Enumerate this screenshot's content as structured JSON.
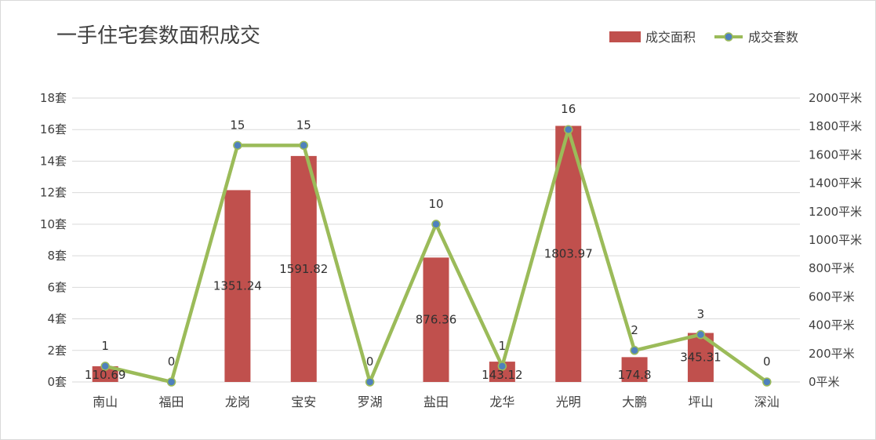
{
  "chart_data": {
    "type": "bar+line",
    "title": "一手住宅套数面积成交",
    "categories": [
      "南山",
      "福田",
      "龙岗",
      "宝安",
      "罗湖",
      "盐田",
      "龙华",
      "光明",
      "大鹏",
      "坪山",
      "深汕"
    ],
    "series": [
      {
        "name": "成交面积",
        "type": "bar",
        "axis": "right",
        "color": "#c0504d",
        "values": [
          110.69,
          0,
          1351.24,
          1591.82,
          0,
          876.36,
          143.12,
          1803.97,
          174.8,
          345.31,
          0
        ],
        "labels": [
          "110.69",
          "",
          "1351.24",
          "1591.82",
          "",
          "876.36",
          "143.12",
          "1803.97",
          "174.8",
          "345.31",
          ""
        ]
      },
      {
        "name": "成交套数",
        "type": "line",
        "axis": "left",
        "color": "#9bbb59",
        "marker_color": "#4f81bd",
        "values": [
          1,
          0,
          15,
          15,
          0,
          10,
          1,
          16,
          2,
          3,
          0
        ],
        "labels": [
          "1",
          "0",
          "15",
          "15",
          "0",
          "10",
          "1",
          "16",
          "2",
          "3",
          "0"
        ]
      }
    ],
    "left_axis": {
      "ylim": [
        0,
        18
      ],
      "ticks": [
        "0套",
        "2套",
        "4套",
        "6套",
        "8套",
        "10套",
        "12套",
        "14套",
        "16套",
        "18套"
      ]
    },
    "right_axis": {
      "ylim": [
        0,
        2000
      ],
      "ticks": [
        "0平米",
        "200平米",
        "400平米",
        "600平米",
        "800平米",
        "1000平米",
        "1200平米",
        "1400平米",
        "1600平米",
        "1800平米",
        "2000平米"
      ]
    },
    "grid": true,
    "legend_position": "top-right"
  }
}
